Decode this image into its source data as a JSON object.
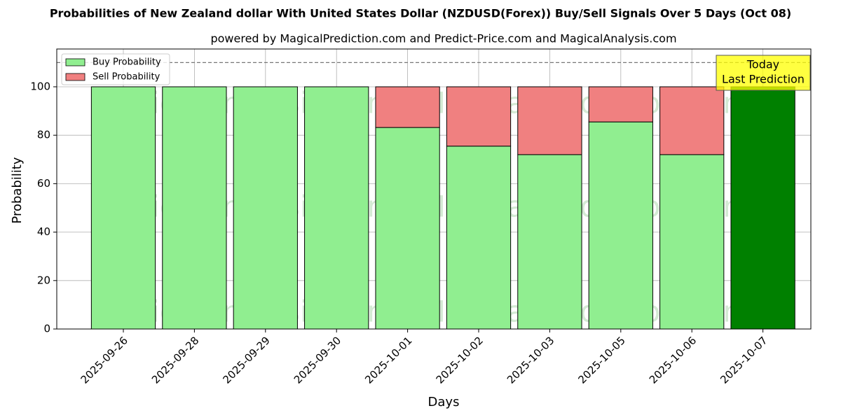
{
  "chart_data": {
    "type": "stacked_bar",
    "title": "Probabilities of New Zealand dollar With United States Dollar (NZDUSD(Forex)) Buy/Sell Signals Over 5 Days (Oct 08)",
    "subtitle": "powered by MagicalPrediction.com and Predict-Price.com and MagicalAnalysis.com",
    "x_label": "Days",
    "y_label": "Probability",
    "categories": [
      "2025-09-26",
      "2025-09-28",
      "2025-09-29",
      "2025-09-30",
      "2025-10-01",
      "2025-10-02",
      "2025-10-03",
      "2025-10-05",
      "2025-10-06",
      "2025-10-07"
    ],
    "series": [
      {
        "name": "Buy Probability",
        "color": "#90ee90",
        "colors": [
          "#90ee90",
          "#90ee90",
          "#90ee90",
          "#90ee90",
          "#90ee90",
          "#90ee90",
          "#90ee90",
          "#90ee90",
          "#90ee90",
          "#008000"
        ],
        "values": [
          100,
          100,
          100,
          100,
          83.2,
          75.5,
          72,
          85.5,
          72,
          100
        ]
      },
      {
        "name": "Sell Probability",
        "color": "#f08080",
        "values": [
          0,
          0,
          0,
          0,
          16.8,
          24.5,
          28,
          14.5,
          28,
          0
        ]
      }
    ],
    "ylim": [
      0,
      115.6
    ],
    "yticks": [
      0,
      20,
      40,
      60,
      80,
      100
    ],
    "grid": true,
    "legend": "upper left",
    "reference_line": 110,
    "annotation": [
      "Today",
      "Last Prediction"
    ],
    "watermarks": [
      "MagicalAnalysis.com",
      "MagicalPrediction.com"
    ]
  }
}
